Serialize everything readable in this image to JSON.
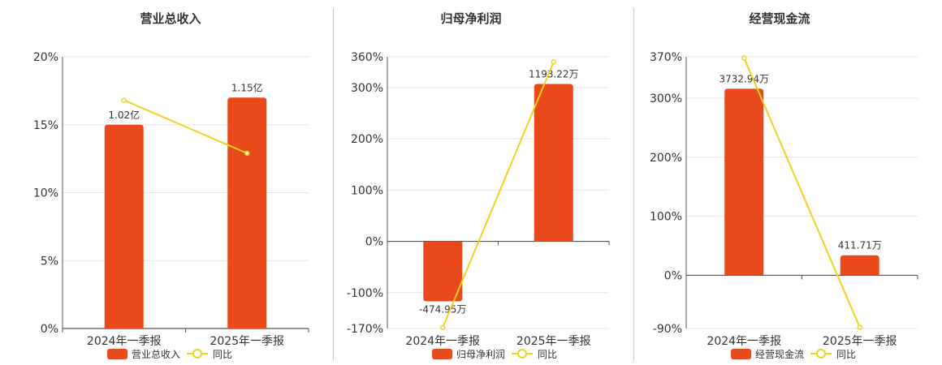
{
  "colors": {
    "bar": "#E84A1B",
    "line": "#F2D21E",
    "grid": "#e6e6e6",
    "axis": "#555555",
    "text": "#333333"
  },
  "chart_data": [
    {
      "type": "bar",
      "title": "营业总收入",
      "categories": [
        "2024年一季报",
        "2025年一季报"
      ],
      "y_ticks": [
        "0%",
        "5%",
        "10%",
        "15%",
        "20%"
      ],
      "ylim": [
        0,
        20
      ],
      "series": [
        {
          "name": "营业总收入",
          "type": "bar",
          "values": [
            15,
            17
          ],
          "labels": [
            "1.02亿",
            "1.15亿"
          ]
        },
        {
          "name": "同比",
          "type": "line",
          "values": [
            16.8,
            12.9
          ]
        }
      ],
      "legend": "bottom"
    },
    {
      "type": "bar",
      "title": "归母净利润",
      "categories": [
        "2024年一季报",
        "2025年一季报"
      ],
      "y_ticks": [
        "-170%",
        "-100%",
        "0%",
        "100%",
        "200%",
        "300%",
        "360%"
      ],
      "ylim": [
        -170,
        360
      ],
      "series": [
        {
          "name": "归母净利润",
          "type": "bar",
          "values": [
            -117,
            307
          ],
          "labels": [
            "-474.95万",
            "1193.22万"
          ]
        },
        {
          "name": "同比",
          "type": "line",
          "values": [
            -168,
            350
          ]
        }
      ],
      "legend": "bottom"
    },
    {
      "type": "bar",
      "title": "经营现金流",
      "categories": [
        "2024年一季报",
        "2025年一季报"
      ],
      "y_ticks": [
        "-90%",
        "0%",
        "100%",
        "200%",
        "300%",
        "370%"
      ],
      "ylim": [
        -90,
        370
      ],
      "series": [
        {
          "name": "经营现金流",
          "type": "bar",
          "values": [
            316,
            34
          ],
          "labels": [
            "3732.94万",
            "411.71万"
          ]
        },
        {
          "name": "同比",
          "type": "line",
          "values": [
            368,
            -88
          ]
        }
      ],
      "legend": "bottom"
    }
  ]
}
